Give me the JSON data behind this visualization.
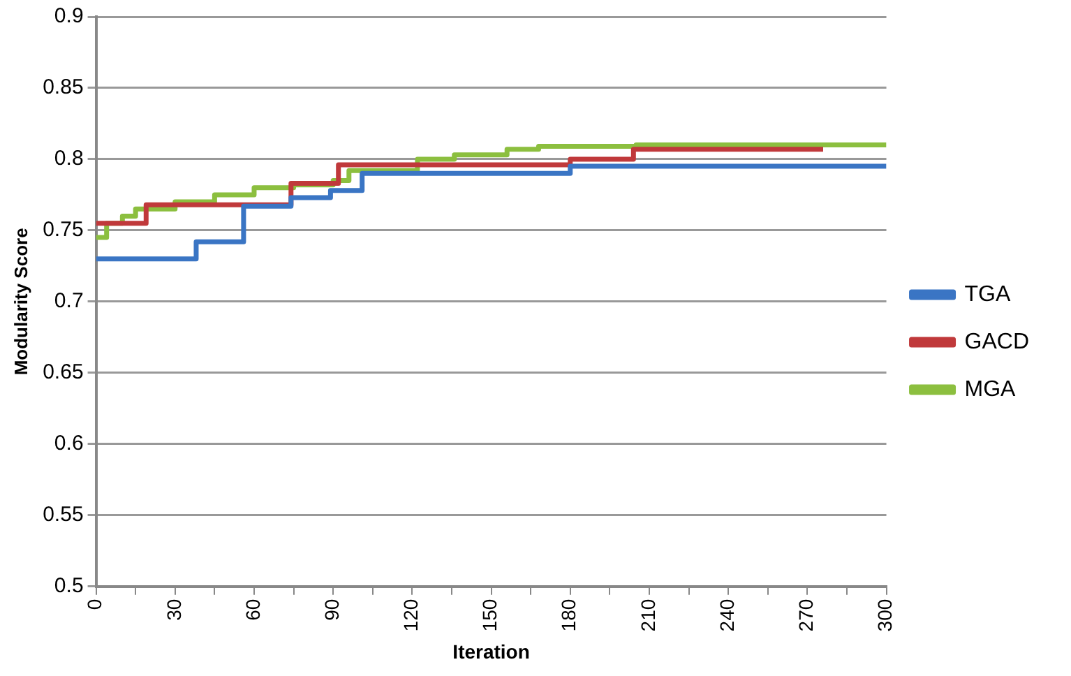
{
  "chart_data": {
    "type": "step",
    "xlabel": "Iteration",
    "ylabel": "Modularity Score",
    "xlim": [
      0,
      300
    ],
    "ylim": [
      0.5,
      0.9
    ],
    "xticks": [
      0,
      {
        "value": 15,
        "label": null
      },
      30,
      {
        "value": 45,
        "label": null
      },
      60,
      {
        "value": 75,
        "label": null
      },
      90,
      {
        "value": 105,
        "label": null
      },
      120,
      {
        "value": 135,
        "label": null
      },
      150,
      {
        "value": 165,
        "label": null
      },
      180,
      {
        "value": 195,
        "label": null
      },
      210,
      {
        "value": 225,
        "label": null
      },
      240,
      {
        "value": 255,
        "label": null
      },
      270,
      {
        "value": 285,
        "label": null
      },
      300
    ],
    "yticks": [
      0.5,
      0.55,
      0.6,
      0.65,
      0.7,
      0.75,
      0.8,
      0.85,
      0.9
    ],
    "grid": "y",
    "legend": "right",
    "marker": "none",
    "line_style": "solid",
    "series": [
      {
        "name": "TGA",
        "color": "#3a75c4",
        "x": [
          0,
          38,
          56,
          74,
          89,
          101,
          180,
          300
        ],
        "values": [
          0.73,
          0.742,
          0.767,
          0.773,
          0.778,
          0.79,
          0.795,
          0.795
        ]
      },
      {
        "name": "GACD",
        "color": "#c0393b",
        "x": [
          0,
          19,
          74,
          92,
          180,
          204,
          276
        ],
        "values": [
          0.755,
          0.768,
          0.783,
          0.796,
          0.8,
          0.807,
          0.807
        ]
      },
      {
        "name": "MGA",
        "color": "#8cbf3f",
        "x": [
          0,
          4,
          10,
          15,
          30,
          45,
          60,
          75,
          90,
          96,
          122,
          136,
          156,
          168,
          205,
          300
        ],
        "values": [
          0.745,
          0.755,
          0.76,
          0.765,
          0.77,
          0.775,
          0.78,
          0.782,
          0.785,
          0.792,
          0.8,
          0.803,
          0.807,
          0.809,
          0.81,
          0.81
        ]
      }
    ]
  }
}
